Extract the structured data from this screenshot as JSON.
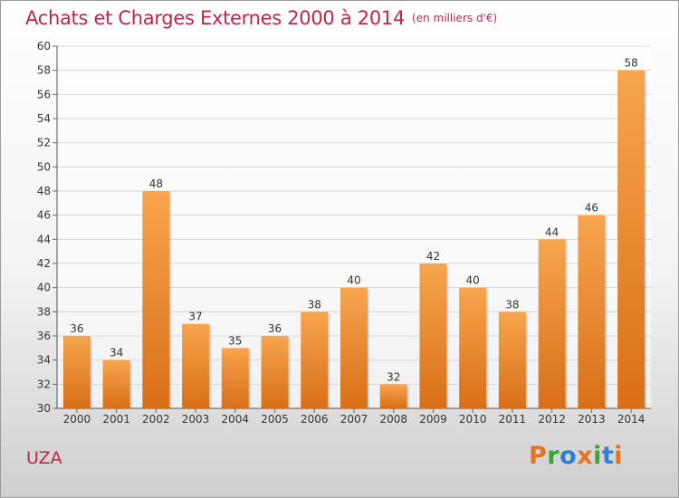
{
  "title": "Achats et Charges Externes 2000 à 2014",
  "unit": "(en milliers d'€)",
  "place": "UZA",
  "logo": {
    "letters": [
      "P",
      "r",
      "o",
      "x",
      "i",
      "t",
      "i"
    ],
    "colors": [
      "#e8731f",
      "#3aa535",
      "#2f7ed8",
      "#e8731f",
      "#3aa535",
      "#2f7ed8",
      "#e8731f"
    ]
  },
  "colors": {
    "bar_top": "#f7a54e",
    "bar_bottom": "#d86f18",
    "accent": "#c0264a"
  },
  "chart_data": {
    "type": "bar",
    "categories": [
      "2000",
      "2001",
      "2002",
      "2003",
      "2004",
      "2005",
      "2006",
      "2007",
      "2008",
      "2009",
      "2010",
      "2011",
      "2012",
      "2013",
      "2014"
    ],
    "values": [
      36,
      34,
      48,
      37,
      35,
      36,
      38,
      40,
      32,
      42,
      40,
      38,
      44,
      46,
      58
    ],
    "ylim": [
      30,
      60
    ],
    "yticks": [
      30,
      32,
      34,
      36,
      38,
      40,
      42,
      44,
      46,
      48,
      50,
      52,
      54,
      56,
      58,
      60
    ],
    "grid": true,
    "legend": "none"
  }
}
